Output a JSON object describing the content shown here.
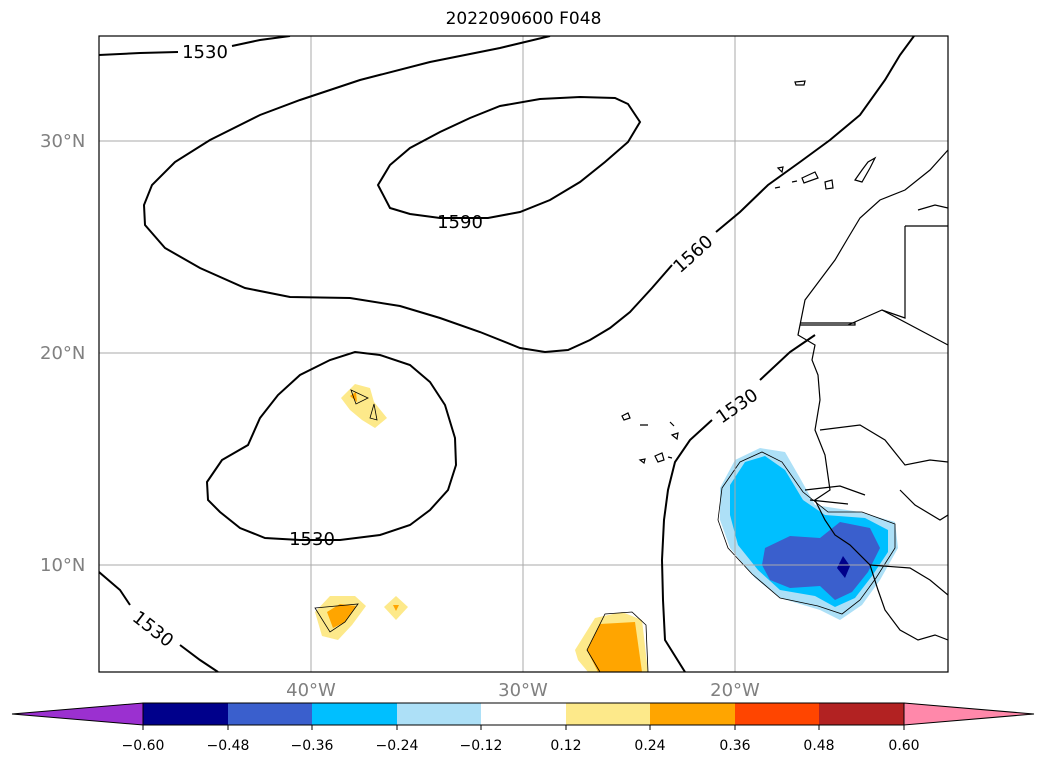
{
  "title": "2022090600 F048",
  "latitude_labels": [
    "30°N",
    "20°N",
    "10°N"
  ],
  "longitude_labels": [
    "40°W",
    "30°W",
    "20°W"
  ],
  "contour_labels": [
    "1530",
    "1590",
    "1560",
    "1530",
    "1530",
    "1530"
  ],
  "colorbar": {
    "tick_labels": [
      "−0.60",
      "−0.48",
      "−0.36",
      "−0.24",
      "−0.12",
      "0.12",
      "0.24",
      "0.36",
      "0.48",
      "0.60"
    ],
    "colors": [
      "#9b30d0",
      "#00008b",
      "#3a5fcd",
      "#00bfff",
      "#ade0f7",
      "#ffffff",
      "#fde98a",
      "#ffa500",
      "#ff4500",
      "#b22222",
      "#ff88aa",
      "#ff88aa"
    ]
  },
  "fill_colors": {
    "light_yellow": "#fde98a",
    "orange": "#ffa500",
    "light_blue": "#ade0f7",
    "deep_sky_blue": "#00bfff",
    "royal_blue": "#3a5fcd",
    "dark_blue": "#00008b"
  }
}
